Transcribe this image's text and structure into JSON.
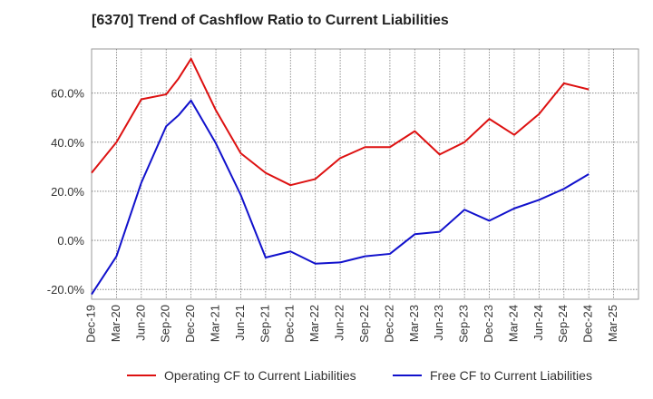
{
  "chart_data": {
    "type": "line",
    "title": "[6370]  Trend of Cashflow Ratio to Current Liabilities",
    "xlabel": "",
    "ylabel": "",
    "ylim": [
      -24,
      78
    ],
    "grid": true,
    "legend_position": "bottom",
    "y_ticks": [
      -20,
      0,
      20,
      40,
      60
    ],
    "y_tick_labels": [
      "-20.0%",
      "0.0%",
      "20.0%",
      "40.0%",
      "60.0%"
    ],
    "x_tick_labels": [
      "Dec-19",
      "Mar-20",
      "Jun-20",
      "Sep-20",
      "Dec-20",
      "Mar-21",
      "Jun-21",
      "Sep-21",
      "Dec-21",
      "Mar-22",
      "Jun-22",
      "Sep-22",
      "Dec-22",
      "Mar-23",
      "Jun-23",
      "Sep-23",
      "Dec-23",
      "Mar-24",
      "Jun-24",
      "Sep-24",
      "Dec-24",
      "Mar-25"
    ],
    "series": [
      {
        "name": "Operating CF to Current Liabilities",
        "color": "#dd1111",
        "points": [
          [
            0,
            27.5
          ],
          [
            1,
            40
          ],
          [
            2,
            57.5
          ],
          [
            3,
            59.5
          ],
          [
            3.5,
            66
          ],
          [
            4,
            74
          ],
          [
            5,
            53
          ],
          [
            6,
            35.5
          ],
          [
            7,
            27.5
          ],
          [
            8,
            22.5
          ],
          [
            9,
            25
          ],
          [
            10,
            33.5
          ],
          [
            11,
            38
          ],
          [
            12,
            38
          ],
          [
            13,
            44.5
          ],
          [
            14,
            35
          ],
          [
            15,
            40
          ],
          [
            16,
            49.5
          ],
          [
            17,
            43
          ],
          [
            18,
            51.5
          ],
          [
            19,
            64
          ],
          [
            20,
            61.5
          ]
        ]
      },
      {
        "name": "Free CF to Current Liabilities",
        "color": "#1111cc",
        "points": [
          [
            0,
            -22
          ],
          [
            1,
            -6.5
          ],
          [
            2,
            23.5
          ],
          [
            3,
            46.5
          ],
          [
            3.5,
            51
          ],
          [
            4,
            57
          ],
          [
            5,
            39.5
          ],
          [
            6,
            18.5
          ],
          [
            7,
            -7
          ],
          [
            8,
            -4.5
          ],
          [
            9,
            -9.5
          ],
          [
            10,
            -9
          ],
          [
            11,
            -6.5
          ],
          [
            12,
            -5.5
          ],
          [
            13,
            2.5
          ],
          [
            14,
            3.5
          ],
          [
            15,
            12.5
          ],
          [
            16,
            8
          ],
          [
            17,
            13
          ],
          [
            18,
            16.5
          ],
          [
            19,
            21
          ],
          [
            20,
            27
          ]
        ]
      }
    ]
  }
}
